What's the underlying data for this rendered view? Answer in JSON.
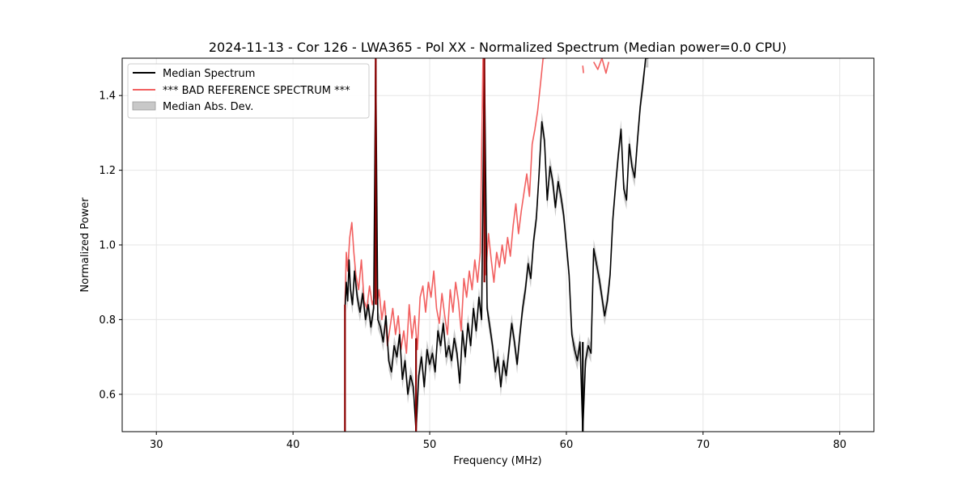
{
  "chart_data": {
    "type": "line",
    "title": "2024-11-13 - Cor 126 - LWA365 - Pol XX - Normalized Spectrum (Median power=0.0 CPU)",
    "xlabel": "Frequency (MHz)",
    "ylabel": "Normalized Power",
    "xlim": [
      27.5,
      82.5
    ],
    "ylim": [
      0.5,
      1.5
    ],
    "xticks": [
      30,
      40,
      50,
      60,
      70,
      80
    ],
    "yticks": [
      0.6,
      0.8,
      1.0,
      1.2,
      1.4
    ],
    "ytick_labels": [
      "0.6",
      "0.8",
      "1.0",
      "1.2",
      "1.4"
    ],
    "grid": true,
    "legend_position": "top-left",
    "legend": [
      {
        "label": "Median Spectrum",
        "kind": "line",
        "color": "#000000"
      },
      {
        "label": "*** BAD REFERENCE SPECTRUM ***",
        "kind": "line",
        "color": "#f26060"
      },
      {
        "label": "Median Abs. Dev.",
        "kind": "band",
        "color": "#c8c8c8"
      }
    ],
    "series": [
      {
        "name": "Median Spectrum",
        "color": "#000000",
        "x": [
          43.8,
          43.9,
          44.0,
          44.1,
          44.2,
          44.35,
          44.5,
          44.7,
          44.9,
          45.1,
          45.3,
          45.5,
          45.7,
          45.9,
          46.05,
          46.2,
          46.4,
          46.6,
          46.8,
          47.0,
          47.2,
          47.4,
          47.6,
          47.8,
          48.0,
          48.2,
          48.4,
          48.6,
          48.8,
          49.0,
          49.2,
          49.4,
          49.6,
          49.8,
          50.0,
          50.2,
          50.4,
          50.6,
          50.8,
          51.0,
          51.2,
          51.4,
          51.6,
          51.8,
          52.0,
          52.2,
          52.4,
          52.6,
          52.8,
          53.0,
          53.2,
          53.4,
          53.6,
          53.8,
          54.0,
          54.2,
          54.4,
          54.6,
          54.8,
          55.0,
          55.2,
          55.4,
          55.6,
          55.8,
          56.0,
          56.2,
          56.4,
          56.6,
          56.8,
          57.0,
          57.2,
          57.4,
          57.6,
          57.8,
          58.0,
          58.2,
          58.4,
          58.6,
          58.8,
          59.0,
          59.2,
          59.4,
          59.6,
          59.8,
          60.0,
          60.2,
          60.4,
          60.6,
          60.8,
          61.0,
          61.2,
          61.4,
          61.6,
          61.8,
          62.0,
          62.2,
          62.4,
          62.6,
          62.8,
          63.0,
          63.2,
          63.4,
          63.6,
          63.8,
          64.0,
          64.2,
          64.4,
          64.6,
          64.8,
          65.0,
          65.2,
          65.4,
          65.6,
          65.8,
          66.0
        ],
        "values": [
          0.82,
          0.9,
          0.85,
          0.96,
          0.88,
          0.84,
          0.93,
          0.86,
          0.82,
          0.87,
          0.8,
          0.84,
          0.78,
          0.83,
          1.5,
          0.8,
          0.78,
          0.74,
          0.81,
          0.69,
          0.66,
          0.73,
          0.7,
          0.76,
          0.64,
          0.69,
          0.6,
          0.65,
          0.62,
          0.5,
          0.65,
          0.7,
          0.62,
          0.72,
          0.68,
          0.71,
          0.66,
          0.77,
          0.73,
          0.79,
          0.7,
          0.73,
          0.69,
          0.75,
          0.71,
          0.63,
          0.77,
          0.7,
          0.79,
          0.73,
          0.83,
          0.77,
          0.86,
          0.8,
          1.5,
          0.83,
          0.78,
          0.73,
          0.66,
          0.7,
          0.62,
          0.69,
          0.65,
          0.72,
          0.79,
          0.74,
          0.68,
          0.76,
          0.83,
          0.88,
          0.95,
          0.91,
          1.01,
          1.07,
          1.19,
          1.33,
          1.28,
          1.12,
          1.21,
          1.17,
          1.1,
          1.17,
          1.13,
          1.08,
          1.0,
          0.92,
          0.76,
          0.72,
          0.69,
          0.74,
          0.5,
          0.69,
          0.73,
          0.71,
          0.99,
          0.95,
          0.91,
          0.86,
          0.81,
          0.85,
          0.92,
          1.07,
          1.16,
          1.24,
          1.31,
          1.15,
          1.12,
          1.27,
          1.21,
          1.18,
          1.28,
          1.37,
          1.43,
          1.5,
          1.5
        ]
      },
      {
        "name": "*** BAD REFERENCE SPECTRUM ***",
        "color": "#f26060",
        "x": [
          43.8,
          43.9,
          44.0,
          44.15,
          44.3,
          44.45,
          44.6,
          44.8,
          45.0,
          45.2,
          45.4,
          45.6,
          45.8,
          45.95,
          46.05,
          46.15,
          46.3,
          46.5,
          46.7,
          46.9,
          47.1,
          47.3,
          47.5,
          47.7,
          47.9,
          48.1,
          48.3,
          48.5,
          48.7,
          48.9,
          49.1,
          49.3,
          49.5,
          49.7,
          49.9,
          50.1,
          50.3,
          50.5,
          50.7,
          50.9,
          51.1,
          51.3,
          51.5,
          51.7,
          51.9,
          52.1,
          52.3,
          52.5,
          52.7,
          52.9,
          53.1,
          53.3,
          53.5,
          53.7,
          53.9,
          54.1,
          54.3,
          54.5,
          54.7,
          54.9,
          55.1,
          55.3,
          55.5,
          55.7,
          55.9,
          56.1,
          56.3,
          56.5,
          56.7,
          56.9,
          57.1,
          57.3,
          57.5,
          57.7,
          57.9,
          58.1,
          58.3,
          58.5
        ],
        "values": [
          0.84,
          0.98,
          0.93,
          1.02,
          1.06,
          0.98,
          0.92,
          0.88,
          0.96,
          0.85,
          0.83,
          0.89,
          0.84,
          0.86,
          1.5,
          0.84,
          0.88,
          0.8,
          0.85,
          0.73,
          0.78,
          0.83,
          0.76,
          0.81,
          0.72,
          0.77,
          0.71,
          0.84,
          0.75,
          0.81,
          0.72,
          0.86,
          0.89,
          0.82,
          0.9,
          0.86,
          0.93,
          0.83,
          0.79,
          0.87,
          0.81,
          0.76,
          0.88,
          0.82,
          0.9,
          0.85,
          0.77,
          0.91,
          0.86,
          0.93,
          0.88,
          0.96,
          0.9,
          0.98,
          1.5,
          0.92,
          1.03,
          0.96,
          0.9,
          0.98,
          0.94,
          1.0,
          0.95,
          1.02,
          0.97,
          1.05,
          1.11,
          1.03,
          1.09,
          1.14,
          1.19,
          1.13,
          1.27,
          1.31,
          1.36,
          1.43,
          1.5,
          1.5
        ]
      }
    ],
    "outlier_segments": [
      {
        "x": 43.8,
        "y_from": 0.5,
        "y_to": 0.84,
        "color": "#8b0000"
      },
      {
        "x": 46.05,
        "y_from": 0.84,
        "y_to": 1.5,
        "color": "#8b0000"
      },
      {
        "x": 49.0,
        "y_from": 0.5,
        "y_to": 0.75,
        "color": "#8b0000"
      },
      {
        "x": 54.0,
        "y_from": 0.9,
        "y_to": 1.5,
        "color": "#8b0000"
      },
      {
        "x": 61.2,
        "y_from": 0.5,
        "y_to": 0.74,
        "color": "#000000"
      }
    ],
    "red_fragments": [
      {
        "x": [
          61.2,
          61.25
        ],
        "values": [
          1.48,
          1.46
        ]
      },
      {
        "x": [
          62.0,
          62.3,
          62.6,
          62.9,
          63.1
        ],
        "values": [
          1.49,
          1.47,
          1.5,
          1.46,
          1.49
        ]
      }
    ]
  }
}
